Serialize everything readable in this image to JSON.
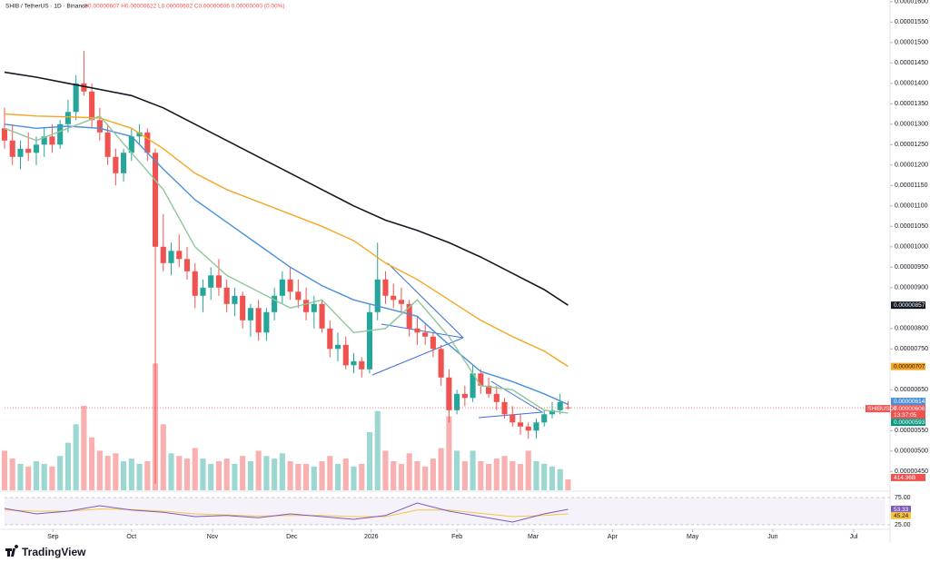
{
  "chart_data": {
    "type": "candlestick",
    "header": {
      "symbol": "SHIB / TetherUS · 1D · Binance",
      "ohlc": "O0.00000607 H0.00000622 L0.00000602 C0.00000606 0.00000000 (0.00%)"
    },
    "brand": "TradingView",
    "xlim": [
      0,
      111
    ],
    "xticks": [
      {
        "value": 6.1,
        "label": "Sep"
      },
      {
        "value": 16,
        "label": "Oct"
      },
      {
        "value": 26.2,
        "label": "Nov"
      },
      {
        "value": 36.2,
        "label": "Dec"
      },
      {
        "value": 46.2,
        "label": "2026"
      },
      {
        "value": 57,
        "label": "Feb"
      },
      {
        "value": 66.6,
        "label": "Mar"
      },
      {
        "value": 76.6,
        "label": "Apr"
      },
      {
        "value": 86.7,
        "label": "May"
      },
      {
        "value": 96.8,
        "label": "Jun"
      },
      {
        "value": 107,
        "label": "Jul"
      }
    ],
    "ylim": [
      4.04e-06,
      1.604e-05
    ],
    "yticks": [
      {
        "value": 1.6e-05,
        "label": "0.00001600"
      },
      {
        "value": 1.55e-05,
        "label": "0.00001550"
      },
      {
        "value": 1.5e-05,
        "label": "0.00001500"
      },
      {
        "value": 1.45e-05,
        "label": "0.00001450"
      },
      {
        "value": 1.4e-05,
        "label": "0.00001400"
      },
      {
        "value": 1.35e-05,
        "label": "0.00001350"
      },
      {
        "value": 1.3e-05,
        "label": "0.00001300"
      },
      {
        "value": 1.25e-05,
        "label": "0.00001250"
      },
      {
        "value": 1.2e-05,
        "label": "0.00001200"
      },
      {
        "value": 1.15e-05,
        "label": "0.00001150"
      },
      {
        "value": 1.1e-05,
        "label": "0.00001100"
      },
      {
        "value": 1.05e-05,
        "label": "0.00001050"
      },
      {
        "value": 1e-05,
        "label": "0.00001000"
      },
      {
        "value": 9.5e-06,
        "label": "0.00000950"
      },
      {
        "value": 9e-06,
        "label": "0.00000900"
      },
      {
        "value": 8e-06,
        "label": "0.00000800"
      },
      {
        "value": 7.5e-06,
        "label": "0.00000750"
      },
      {
        "value": 6.5e-06,
        "label": "0.00000650"
      },
      {
        "value": 5.5e-06,
        "label": "0.00000550"
      },
      {
        "value": 5e-06,
        "label": "0.00000500"
      },
      {
        "value": 4.5e-06,
        "label": "0.00000450"
      }
    ],
    "up_color": "#26a69a",
    "down_color": "#ef5350",
    "candles": {
      "open": [
        1.29e-05,
        1.26e-05,
        1.22e-05,
        1.24e-05,
        1.23e-05,
        1.25e-05,
        1.27e-05,
        1.25e-05,
        1.3e-05,
        1.33e-05,
        1.4e-05,
        1.38e-05,
        1.31e-05,
        1.28e-05,
        1.22e-05,
        1.18e-05,
        1.23e-05,
        1.27e-05,
        1.28e-05,
        1.23e-05,
        1e-05,
        9.6e-06,
        9.9e-06,
        9.7e-06,
        9.4e-06,
        8.8e-06,
        9e-06,
        9.3e-06,
        9e-06,
        8.6e-06,
        8.8e-06,
        8.2e-06,
        8.5e-06,
        7.9e-06,
        8.4e-06,
        8.8e-06,
        9.2e-06,
        8.9e-06,
        8.7e-06,
        8.4e-06,
        8.6e-06,
        8e-06,
        7.5e-06,
        7.6e-06,
        7.1e-06,
        7.2e-06,
        7e-06,
        8.4e-06,
        9.2e-06,
        8.8e-06,
        8.7e-06,
        8.6e-06,
        8e-06,
        7.9e-06,
        7.8e-06,
        7.5e-06,
        6.8e-06,
        6e-06,
        6.4e-06,
        6.3e-06,
        6.9e-06,
        6.6e-06,
        6.4e-06,
        6.2e-06,
        5.9e-06,
        5.7e-06,
        5.6e-06,
        5.5e-06,
        5.7e-06,
        5.9e-06,
        6e-06,
        6.07e-06
      ],
      "high": [
        1.34e-05,
        1.3e-05,
        1.26e-05,
        1.28e-05,
        1.27e-05,
        1.29e-05,
        1.3e-05,
        1.31e-05,
        1.36e-05,
        1.42e-05,
        1.48e-05,
        1.4e-05,
        1.34e-05,
        1.3e-05,
        1.24e-05,
        1.24e-05,
        1.29e-05,
        1.3e-05,
        1.29e-05,
        1.24e-05,
        1.08e-05,
        1.01e-05,
        1.03e-05,
        1e-05,
        9.6e-06,
        9.2e-06,
        9.5e-06,
        9.7e-06,
        9.2e-06,
        9e-06,
        8.9e-06,
        8.6e-06,
        8.7e-06,
        8.5e-06,
        9e-06,
        9.4e-06,
        9.5e-06,
        9.2e-06,
        9e-06,
        8.8e-06,
        8.7e-06,
        8.2e-06,
        7.9e-06,
        7.8e-06,
        7.4e-06,
        7.3e-06,
        8.6e-06,
        1.01e-05,
        9.4e-06,
        9.1e-06,
        9e-06,
        8.7e-06,
        8.3e-06,
        8.1e-06,
        7.9e-06,
        7.6e-06,
        7e-06,
        6.5e-06,
        6.6e-06,
        7.1e-06,
        7e-06,
        6.8e-06,
        6.6e-06,
        6.3e-06,
        6.1e-06,
        5.9e-06,
        5.7e-06,
        5.8e-06,
        6e-06,
        6.2e-06,
        6.4e-06,
        6.22e-06
      ],
      "low": [
        1.24e-05,
        1.2e-05,
        1.19e-05,
        1.21e-05,
        1.2e-05,
        1.22e-05,
        1.23e-05,
        1.24e-05,
        1.28e-05,
        1.31e-05,
        1.37e-05,
        1.29e-05,
        1.26e-05,
        1.2e-05,
        1.15e-05,
        1.16e-05,
        1.21e-05,
        1.25e-05,
        1.21e-05,
        4.2e-06,
        9.4e-06,
        9.3e-06,
        9.5e-06,
        9.2e-06,
        8.5e-06,
        8.4e-06,
        8.7e-06,
        8.8e-06,
        8.4e-06,
        8.3e-06,
        8e-06,
        7.8e-06,
        7.7e-06,
        7.7e-06,
        8.2e-06,
        8.6e-06,
        8.7e-06,
        8.5e-06,
        8.2e-06,
        8e-06,
        7.9e-06,
        7.3e-06,
        7.2e-06,
        7e-06,
        6.9e-06,
        6.8e-06,
        6.9e-06,
        8.2e-06,
        8.6e-06,
        8.5e-06,
        8.4e-06,
        7.8e-06,
        7.6e-06,
        7.6e-06,
        7.3e-06,
        6.6e-06,
        5.7e-06,
        5.9e-06,
        6.1e-06,
        6.2e-06,
        6.4e-06,
        6.3e-06,
        6e-06,
        5.8e-06,
        5.6e-06,
        5.4e-06,
        5.3e-06,
        5.3e-06,
        5.6e-06,
        5.8e-06,
        5.9e-06,
        6.02e-06
      ],
      "close": [
        1.26e-05,
        1.22e-05,
        1.24e-05,
        1.23e-05,
        1.25e-05,
        1.27e-05,
        1.25e-05,
        1.3e-05,
        1.33e-05,
        1.4e-05,
        1.38e-05,
        1.31e-05,
        1.28e-05,
        1.22e-05,
        1.18e-05,
        1.23e-05,
        1.27e-05,
        1.28e-05,
        1.23e-05,
        1e-05,
        9.6e-06,
        9.9e-06,
        9.7e-06,
        9.4e-06,
        8.8e-06,
        9e-06,
        9.3e-06,
        9e-06,
        8.6e-06,
        8.8e-06,
        8.2e-06,
        8.5e-06,
        7.9e-06,
        8.4e-06,
        8.8e-06,
        9.2e-06,
        8.9e-06,
        8.7e-06,
        8.4e-06,
        8.6e-06,
        8e-06,
        7.5e-06,
        7.6e-06,
        7.1e-06,
        7.2e-06,
        7e-06,
        8.4e-06,
        9.2e-06,
        8.8e-06,
        8.7e-06,
        8.6e-06,
        8e-06,
        7.9e-06,
        7.8e-06,
        7.5e-06,
        6.8e-06,
        6e-06,
        6.4e-06,
        6.3e-06,
        6.9e-06,
        6.6e-06,
        6.4e-06,
        6.2e-06,
        5.9e-06,
        5.7e-06,
        5.6e-06,
        5.5e-06,
        5.7e-06,
        5.9e-06,
        6e-06,
        6.2e-06,
        6.06e-06
      ]
    },
    "price_tag": {
      "symbol": "SHIBUSDT",
      "price": "0.00000606",
      "countdown": "13:37:05",
      "value": 6.06e-06,
      "color": "#ef5350"
    },
    "moving_averages": [
      {
        "color": "#131722",
        "x": [
          0,
          4,
          8,
          12,
          16,
          20,
          24,
          28,
          32,
          36,
          40,
          44,
          48,
          52,
          56,
          60,
          64,
          68,
          71
        ],
        "values": [
          1.427e-05,
          1.415e-05,
          1.4e-05,
          1.385e-05,
          1.37e-05,
          1.34e-05,
          1.3e-05,
          1.26e-05,
          1.22e-05,
          1.18e-05,
          1.14e-05,
          1.1e-05,
          1.065e-05,
          1.04e-05,
          1.01e-05,
          9.75e-06,
          9.35e-06,
          8.95e-06,
          8.57e-06
        ],
        "last_label": "0.00000857"
      },
      {
        "color": "#f5a623",
        "x": [
          0,
          4,
          8,
          12,
          16,
          20,
          24,
          28,
          32,
          36,
          40,
          44,
          48,
          52,
          56,
          60,
          64,
          68,
          71
        ],
        "values": [
          1.325e-05,
          1.32e-05,
          1.318e-05,
          1.315e-05,
          1.29e-05,
          1.24e-05,
          1.18e-05,
          1.14e-05,
          1.11e-05,
          1.08e-05,
          1.05e-05,
          1.015e-05,
          9.6e-06,
          9.2e-06,
          8.7e-06,
          8.2e-06,
          7.8e-06,
          7.45e-06,
          7.07e-06
        ],
        "last_label": "0.00000707"
      },
      {
        "color": "#4a90d9",
        "x": [
          0,
          4,
          8,
          12,
          16,
          20,
          24,
          28,
          32,
          36,
          40,
          44,
          48,
          52,
          56,
          60,
          64,
          68,
          71
        ],
        "values": [
          1.3e-05,
          1.29e-05,
          1.295e-05,
          1.29e-05,
          1.27e-05,
          1.19e-05,
          1.115e-05,
          1.06e-05,
          1.005e-05,
          9.5e-06,
          9.05e-06,
          8.7e-06,
          8.5e-06,
          8.3e-06,
          7.6e-06,
          6.95e-06,
          6.7e-06,
          6.4e-06,
          6.14e-06
        ],
        "last_label": "0.00000614"
      },
      {
        "color": "#8fc79a",
        "x": [
          0,
          4,
          8,
          12,
          16,
          20,
          24,
          28,
          32,
          36,
          40,
          44,
          48,
          52,
          56,
          60,
          64,
          68,
          71
        ],
        "values": [
          1.29e-05,
          1.26e-05,
          1.29e-05,
          1.32e-05,
          1.23e-05,
          1.14e-05,
          1e-05,
          9.3e-06,
          8.9e-06,
          8.5e-06,
          8.7e-06,
          7.9e-06,
          8e-06,
          8.7e-06,
          7.8e-06,
          6.6e-06,
          6.5e-06,
          6e-06,
          5.93e-06
        ],
        "last_label": "0.00000593",
        "tag_color": "#089981"
      }
    ],
    "volume": {
      "vlim": [
        0,
        5500
      ],
      "values": [
        1500,
        1200,
        1000,
        900,
        1100,
        1000,
        900,
        1300,
        1800,
        2500,
        3200,
        2000,
        1500,
        1300,
        1400,
        1100,
        1200,
        1000,
        1100,
        4800,
        2500,
        1400,
        1300,
        1200,
        1600,
        1200,
        1000,
        1100,
        1200,
        1000,
        1300,
        1100,
        1500,
        1300,
        1200,
        1400,
        1100,
        1000,
        1000,
        900,
        1100,
        1300,
        1000,
        1200,
        900,
        1000,
        2200,
        3000,
        1500,
        1100,
        1000,
        1400,
        1100,
        900,
        1200,
        1600,
        2800,
        1500,
        1100,
        1500,
        1100,
        1000,
        1200,
        1300,
        1100,
        1000,
        1500,
        1100,
        1000,
        900,
        800,
        414.36
      ],
      "last_label": "414.36B"
    },
    "rsi": {
      "ylim": [
        20,
        80
      ],
      "yticks": [
        {
          "value": 75,
          "label": "75.00"
        },
        {
          "value": 25,
          "label": "25.00"
        }
      ],
      "line": {
        "color": "#7e57c2",
        "x": [
          0,
          4,
          8,
          12,
          16,
          20,
          24,
          28,
          32,
          36,
          40,
          44,
          48,
          52,
          56,
          60,
          64,
          68,
          71
        ],
        "values": [
          55,
          45,
          50,
          60,
          52,
          48,
          40,
          42,
          38,
          45,
          40,
          35,
          42,
          65,
          50,
          40,
          30,
          45,
          53.33
        ],
        "last_label": "53.33"
      },
      "ma": {
        "color": "#f5c542",
        "x": [
          0,
          4,
          8,
          12,
          16,
          20,
          24,
          28,
          32,
          36,
          40,
          44,
          48,
          52,
          56,
          60,
          64,
          68,
          71
        ],
        "values": [
          52,
          50,
          50,
          54,
          53,
          50,
          45,
          43,
          41,
          42,
          42,
          40,
          40,
          52,
          52,
          46,
          40,
          42,
          45.24
        ],
        "last_label": "45.24"
      }
    }
  }
}
